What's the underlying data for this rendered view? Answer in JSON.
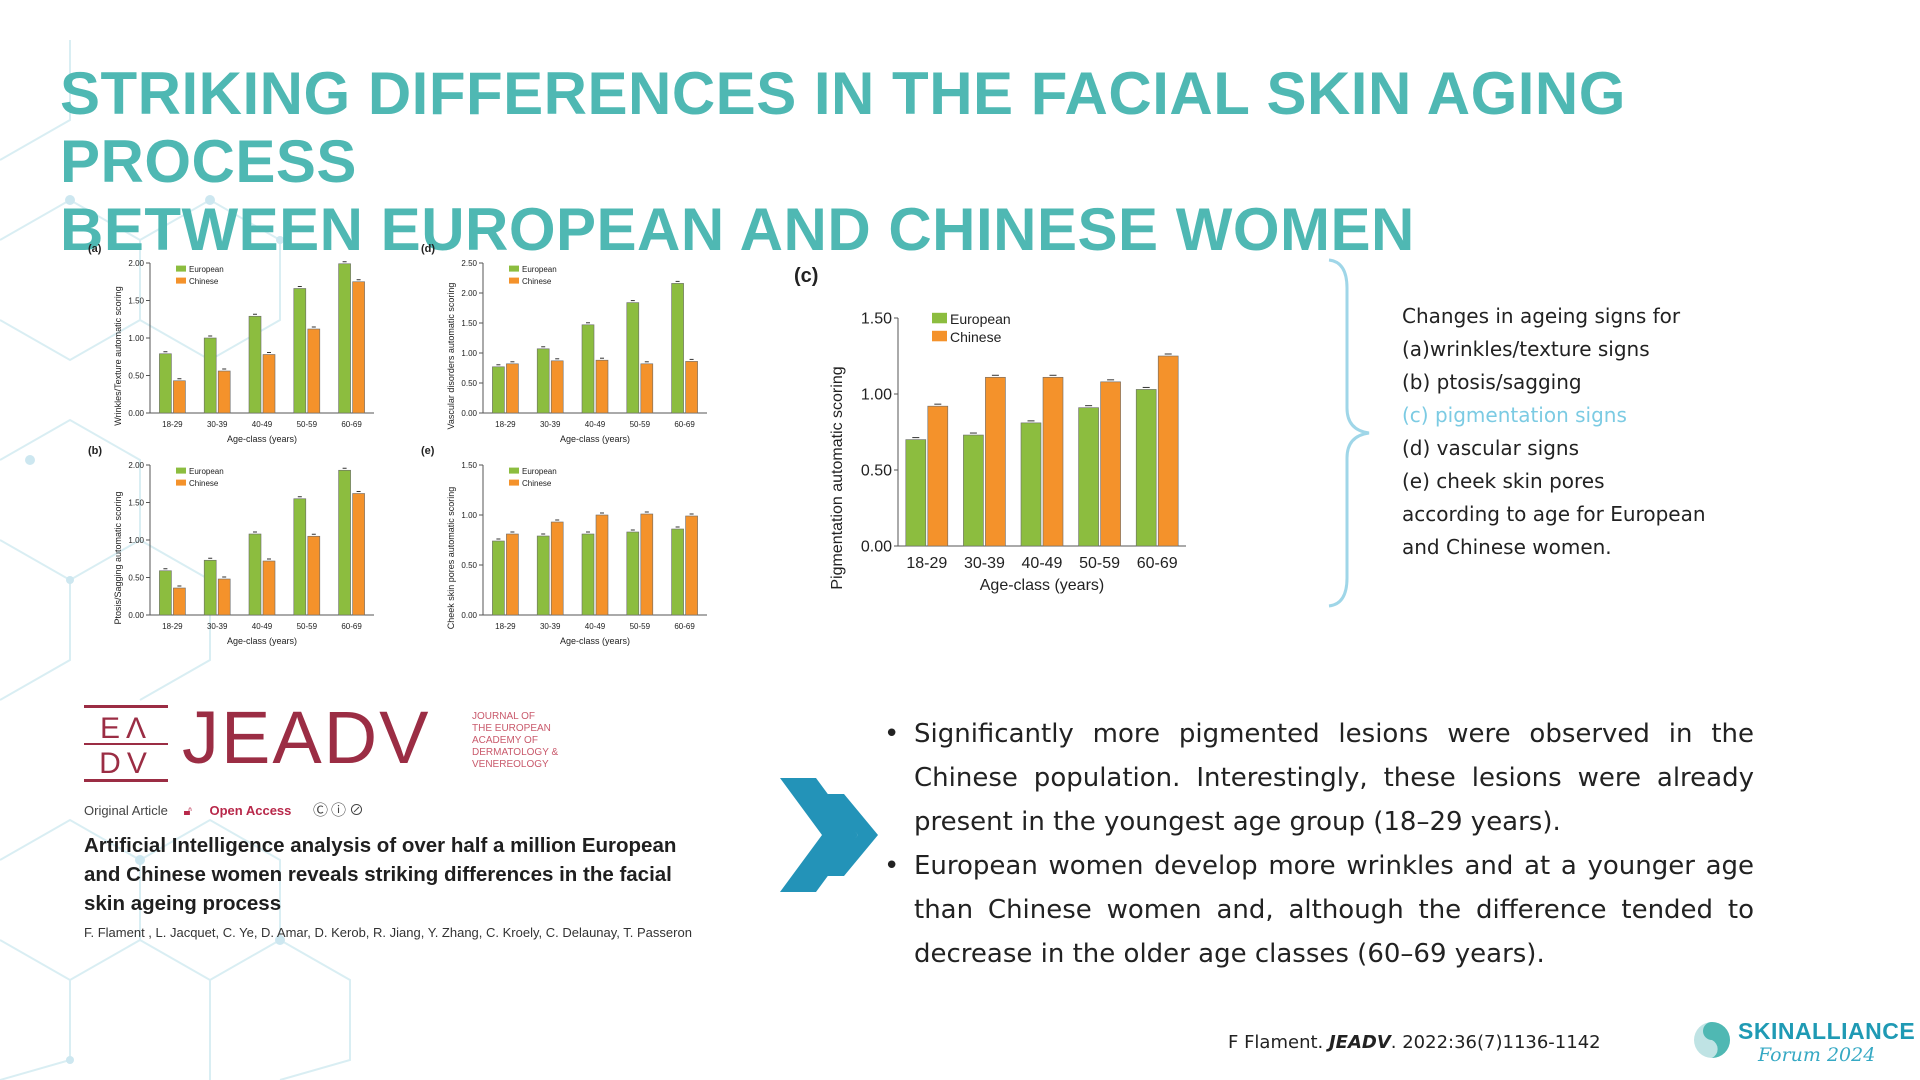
{
  "title": {
    "line1": "STRIKING DIFFERENCES IN THE FACIAL SKIN AGING PROCESS",
    "line2": "BETWEEN EUROPEAN AND CHINESE WOMEN"
  },
  "colors": {
    "european": "#8cbd3f",
    "chinese": "#f4922b",
    "title": "#4fb8b3",
    "accent": "#1f9ab4",
    "highlight": "#7ccbe3",
    "journal": "#9b2d44"
  },
  "chart_data": [
    {
      "id": "a",
      "type": "bar",
      "panel_label": "(a)",
      "ylabel": "Wrinkles/Texture automatic scoring",
      "xlabel": "Age-class (years)",
      "categories": [
        "18-29",
        "30-39",
        "40-49",
        "50-59",
        "60-69"
      ],
      "ylim": [
        0,
        2.0
      ],
      "yticks": [
        "0.00",
        "0.50",
        "1.00",
        "1.50",
        "2.00"
      ],
      "series": [
        {
          "name": "European",
          "values": [
            0.79,
            1.0,
            1.29,
            1.66,
            1.99
          ]
        },
        {
          "name": "Chinese",
          "values": [
            0.43,
            0.56,
            0.78,
            1.12,
            1.75
          ]
        }
      ],
      "legend_position": "top-left"
    },
    {
      "id": "d",
      "type": "bar",
      "panel_label": "(d)",
      "ylabel": "Vascular disorders automatic scoring",
      "xlabel": "Age-class (years)",
      "categories": [
        "18-29",
        "30-39",
        "40-49",
        "50-59",
        "60-69"
      ],
      "ylim": [
        0,
        2.5
      ],
      "yticks": [
        "0.00",
        "0.50",
        "1.00",
        "1.50",
        "2.00",
        "2.50"
      ],
      "series": [
        {
          "name": "European",
          "values": [
            0.77,
            1.07,
            1.47,
            1.84,
            2.16
          ]
        },
        {
          "name": "Chinese",
          "values": [
            0.82,
            0.87,
            0.88,
            0.82,
            0.86
          ]
        }
      ],
      "legend_position": "top-left"
    },
    {
      "id": "b",
      "type": "bar",
      "panel_label": "(b)",
      "ylabel": "Ptosis/Sagging automatic scoring",
      "xlabel": "Age-class (years)",
      "categories": [
        "18-29",
        "30-39",
        "40-49",
        "50-59",
        "60-69"
      ],
      "ylim": [
        0,
        2.0
      ],
      "yticks": [
        "0.00",
        "0.50",
        "1.00",
        "1.50",
        "2.00"
      ],
      "series": [
        {
          "name": "European",
          "values": [
            0.59,
            0.73,
            1.08,
            1.55,
            1.93
          ]
        },
        {
          "name": "Chinese",
          "values": [
            0.36,
            0.48,
            0.72,
            1.05,
            1.62
          ]
        }
      ],
      "legend_position": "top-left"
    },
    {
      "id": "e",
      "type": "bar",
      "panel_label": "(e)",
      "ylabel": "Cheek skin pores automatic scoring",
      "xlabel": "Age-class (years)",
      "categories": [
        "18-29",
        "30-39",
        "40-49",
        "50-59",
        "60-69"
      ],
      "ylim": [
        0,
        1.5
      ],
      "yticks": [
        "0.00",
        "0.50",
        "1.00",
        "1.50"
      ],
      "series": [
        {
          "name": "European",
          "values": [
            0.74,
            0.79,
            0.81,
            0.83,
            0.86
          ]
        },
        {
          "name": "Chinese",
          "values": [
            0.81,
            0.93,
            1.0,
            1.01,
            0.99
          ]
        }
      ],
      "legend_position": "top-left"
    },
    {
      "id": "c",
      "type": "bar",
      "panel_label": "(c)",
      "ylabel": "Pigmentation automatic scoring",
      "xlabel": "Age-class (years)",
      "categories": [
        "18-29",
        "30-39",
        "40-49",
        "50-59",
        "60-69"
      ],
      "ylim": [
        0,
        1.5
      ],
      "yticks": [
        "0.00",
        "0.50",
        "1.00",
        "1.50"
      ],
      "series": [
        {
          "name": "European",
          "values": [
            0.7,
            0.73,
            0.81,
            0.91,
            1.03
          ]
        },
        {
          "name": "Chinese",
          "values": [
            0.92,
            1.11,
            1.11,
            1.08,
            1.25
          ]
        }
      ],
      "legend_position": "top-left"
    }
  ],
  "legend_text": {
    "line1": "Changes in ageing signs for",
    "line2": "(a)wrinkles/texture signs",
    "line3": "(b) ptosis/sagging",
    "line4": "(c) pigmentation signs",
    "line5": "(d) vascular signs",
    "line6": "(e) cheek skin pores",
    "line7": "according to age for European",
    "line8": "and Chinese women."
  },
  "journal": {
    "logo_letters": "EA DV",
    "name": "JEADV",
    "full_name": [
      "JOURNAL OF",
      "THE EUROPEAN",
      "ACADEMY OF",
      "DERMATOLOGY &",
      "VENEREOLOGY"
    ],
    "article_type": "Original Article",
    "open_access": "Open Access",
    "license_icons": "cc-by-nc-icons",
    "paper_title": [
      "Artificial Intelligence analysis of over half a million European",
      "and Chinese women reveals striking differences in the facial",
      "skin ageing process"
    ],
    "authors": "F. Flament   , L. Jacquet, C. Ye, D. Amar, D. Kerob, R. Jiang, Y. Zhang, C. Kroely, C. Delaunay, T. Passeron"
  },
  "bullets": {
    "b1": "Significantly more pigmented lesions were observed in the Chinese population. Interestingly, these lesions were already present in the youngest age group (18–29 years).",
    "b2": "European women develop more wrinkles and at a younger age than Chinese women and, although the difference tended to decrease in the older age classes (60–69 years)."
  },
  "citation": {
    "author": "F Flament. ",
    "journal": "JEADV",
    "ref": ". 2022:36(7)1136-1142"
  },
  "brand": {
    "name": "SKINALLIANCE",
    "sub": "Forum 2024"
  }
}
